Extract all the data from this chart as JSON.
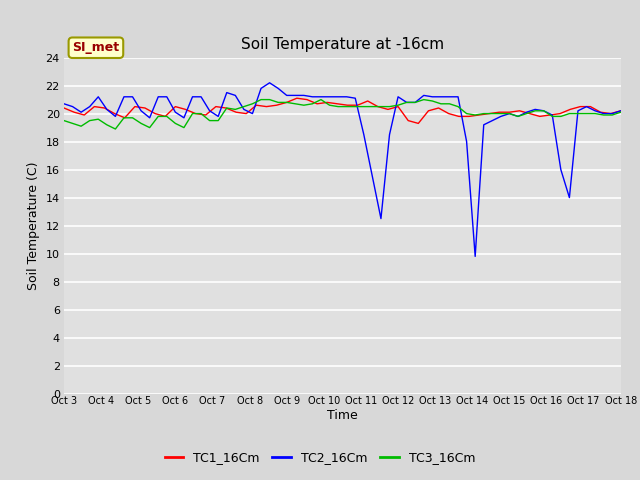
{
  "title": "Soil Temperature at -16cm",
  "xlabel": "Time",
  "ylabel": "Soil Temperature (C)",
  "background_color": "#d8d8d8",
  "plot_bg_color": "#e0e0e0",
  "ylim": [
    0,
    24
  ],
  "yticks": [
    0,
    2,
    4,
    6,
    8,
    10,
    12,
    14,
    16,
    18,
    20,
    22,
    24
  ],
  "xtick_labels": [
    "Oct 3",
    "Oct 4",
    "Oct 5",
    "Oct 6",
    "Oct 7",
    "Oct 8",
    "Oct 9",
    "Oct 10",
    "Oct 11",
    "Oct 12",
    "Oct 13",
    "Oct 14",
    "Oct 15",
    "Oct 16",
    "Oct 17",
    "Oct 18"
  ],
  "legend_label": "SI_met",
  "series_labels": [
    "TC1_16Cm",
    "TC2_16Cm",
    "TC3_16Cm"
  ],
  "series_colors": [
    "#ff0000",
    "#0000ff",
    "#00bb00"
  ],
  "tc1": [
    20.4,
    20.1,
    19.9,
    20.5,
    20.4,
    20.0,
    19.7,
    20.5,
    20.4,
    20.0,
    19.8,
    20.5,
    20.3,
    20.0,
    19.9,
    20.5,
    20.4,
    20.1,
    20.0,
    20.6,
    20.5,
    20.6,
    20.8,
    21.1,
    21.0,
    20.7,
    20.8,
    20.7,
    20.6,
    20.6,
    20.9,
    20.5,
    20.3,
    20.5,
    19.5,
    19.3,
    20.2,
    20.4,
    20.0,
    19.8,
    19.8,
    19.9,
    20.0,
    20.1,
    20.1,
    20.2,
    20.0,
    19.8,
    19.9,
    20.0,
    20.3,
    20.5,
    20.5,
    20.1,
    20.0,
    20.2
  ],
  "tc2": [
    20.7,
    20.5,
    20.1,
    20.5,
    21.2,
    20.3,
    19.8,
    21.2,
    21.2,
    20.2,
    19.7,
    21.2,
    21.2,
    20.1,
    19.7,
    21.2,
    21.2,
    20.2,
    19.8,
    21.5,
    21.3,
    20.3,
    20.0,
    21.8,
    22.2,
    21.8,
    21.3,
    21.3,
    21.3,
    21.2,
    21.2,
    21.2,
    21.2,
    21.2,
    21.1,
    18.5,
    15.5,
    12.5,
    18.5,
    21.2,
    20.8,
    20.8,
    21.3,
    21.2,
    21.2,
    21.2,
    21.2,
    18.0,
    9.8,
    19.2,
    19.5,
    19.8,
    20.0,
    19.8,
    20.1,
    20.3,
    20.2,
    19.9,
    16.0,
    14.0,
    20.2,
    20.5,
    20.2,
    20.0,
    20.0,
    20.2
  ],
  "tc3": [
    19.5,
    19.3,
    19.1,
    19.5,
    19.6,
    19.2,
    18.9,
    19.7,
    19.7,
    19.3,
    19.0,
    19.8,
    19.8,
    19.3,
    19.0,
    20.0,
    20.0,
    19.5,
    19.5,
    20.4,
    20.3,
    20.5,
    20.7,
    21.0,
    21.0,
    20.8,
    20.8,
    20.7,
    20.6,
    20.7,
    21.0,
    20.6,
    20.5,
    20.5,
    20.5,
    20.5,
    20.5,
    20.5,
    20.5,
    20.6,
    20.8,
    20.8,
    21.0,
    20.9,
    20.7,
    20.7,
    20.5,
    20.0,
    19.9,
    20.0,
    20.0,
    20.0,
    20.0,
    19.8,
    20.0,
    20.2,
    20.2,
    19.8,
    19.8,
    20.0,
    20.0,
    20.0,
    20.0,
    19.9,
    19.9,
    20.1
  ]
}
